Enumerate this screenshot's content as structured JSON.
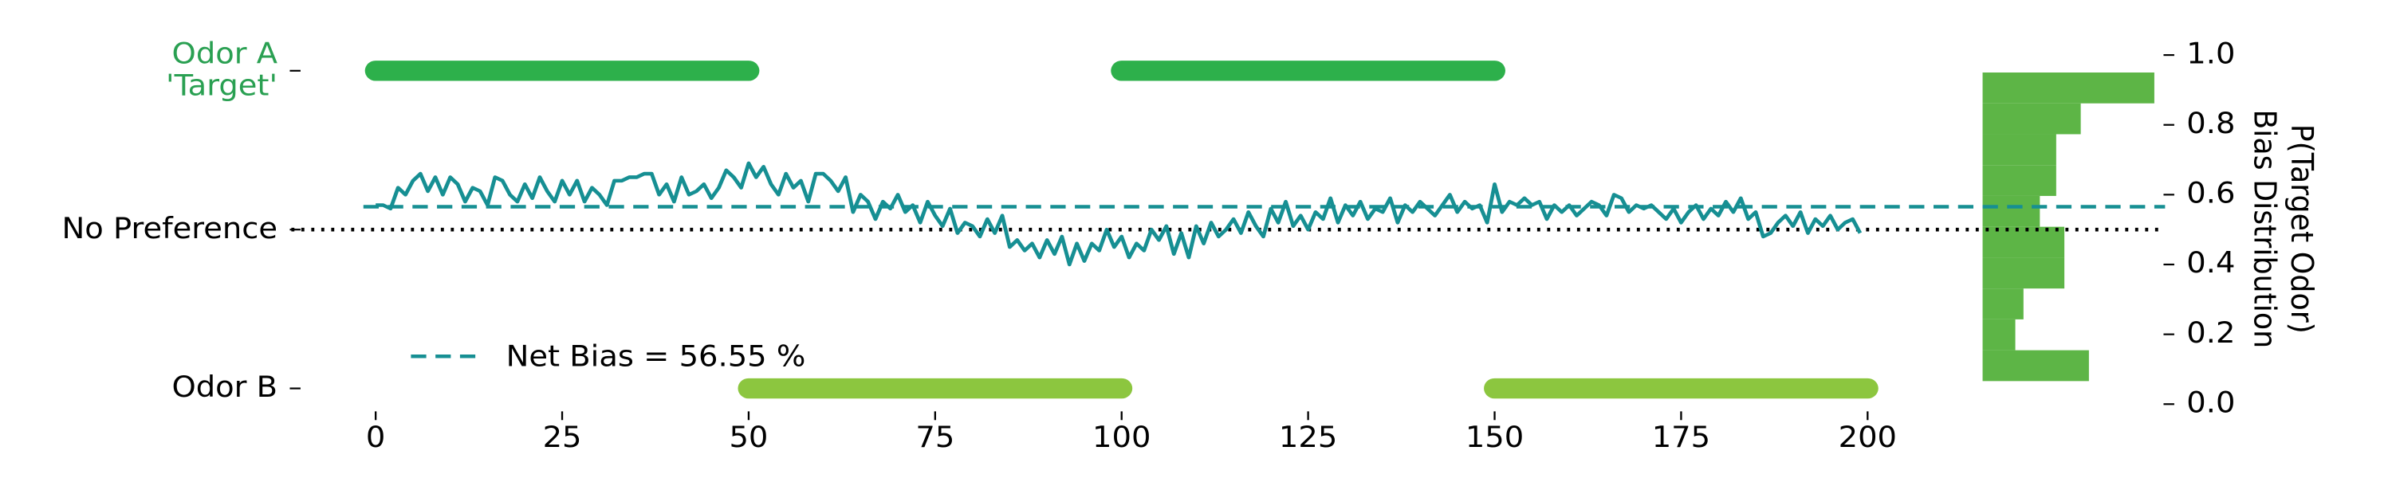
{
  "chart_data": {
    "type": "line",
    "x": [
      0,
      1,
      2,
      3,
      4,
      5,
      6,
      7,
      8,
      9,
      10,
      11,
      12,
      13,
      14,
      15,
      16,
      17,
      18,
      19,
      20,
      21,
      22,
      23,
      24,
      25,
      26,
      27,
      28,
      29,
      30,
      31,
      32,
      33,
      34,
      35,
      36,
      37,
      38,
      39,
      40,
      41,
      42,
      43,
      44,
      45,
      46,
      47,
      48,
      49,
      50,
      51,
      52,
      53,
      54,
      55,
      56,
      57,
      58,
      59,
      60,
      61,
      62,
      63,
      64,
      65,
      66,
      67,
      68,
      69,
      70,
      71,
      72,
      73,
      74,
      75,
      76,
      77,
      78,
      79,
      80,
      81,
      82,
      83,
      84,
      85,
      86,
      87,
      88,
      89,
      90,
      91,
      92,
      93,
      94,
      95,
      96,
      97,
      98,
      99,
      100,
      101,
      102,
      103,
      104,
      105,
      106,
      107,
      108,
      109,
      110,
      111,
      112,
      113,
      114,
      115,
      116,
      117,
      118,
      119,
      120,
      121,
      122,
      123,
      124,
      125,
      126,
      127,
      128,
      129,
      130,
      131,
      132,
      133,
      134,
      135,
      136,
      137,
      138,
      139,
      140,
      141,
      142,
      143,
      144,
      145,
      146,
      147,
      148,
      149,
      150,
      151,
      152,
      153,
      154,
      155,
      156,
      157,
      158,
      159,
      160,
      161,
      162,
      163,
      164,
      165,
      166,
      167,
      168,
      169,
      170,
      171,
      172,
      173,
      174,
      175,
      176,
      177,
      178,
      179,
      180,
      181,
      182,
      183,
      184,
      185,
      186,
      187,
      188,
      189,
      190,
      191,
      192,
      193,
      194,
      195,
      196,
      197,
      198,
      199
    ],
    "series": [
      {
        "color": "#168f93",
        "values": [
          0.57,
          0.57,
          0.56,
          0.62,
          0.6,
          0.64,
          0.66,
          0.61,
          0.65,
          0.6,
          0.65,
          0.63,
          0.58,
          0.62,
          0.61,
          0.57,
          0.65,
          0.64,
          0.6,
          0.58,
          0.63,
          0.59,
          0.65,
          0.61,
          0.58,
          0.64,
          0.6,
          0.64,
          0.58,
          0.62,
          0.6,
          0.57,
          0.64,
          0.64,
          0.65,
          0.65,
          0.66,
          0.66,
          0.6,
          0.63,
          0.58,
          0.65,
          0.6,
          0.61,
          0.63,
          0.59,
          0.62,
          0.67,
          0.65,
          0.62,
          0.69,
          0.65,
          0.68,
          0.63,
          0.6,
          0.66,
          0.62,
          0.64,
          0.58,
          0.66,
          0.66,
          0.64,
          0.61,
          0.65,
          0.55,
          0.6,
          0.58,
          0.53,
          0.58,
          0.56,
          0.6,
          0.55,
          0.57,
          0.52,
          0.58,
          0.54,
          0.51,
          0.56,
          0.49,
          0.52,
          0.51,
          0.48,
          0.53,
          0.49,
          0.54,
          0.45,
          0.47,
          0.44,
          0.46,
          0.42,
          0.47,
          0.43,
          0.48,
          0.4,
          0.46,
          0.41,
          0.46,
          0.44,
          0.5,
          0.45,
          0.48,
          0.42,
          0.46,
          0.44,
          0.5,
          0.47,
          0.51,
          0.43,
          0.49,
          0.42,
          0.51,
          0.46,
          0.52,
          0.48,
          0.5,
          0.53,
          0.49,
          0.55,
          0.51,
          0.48,
          0.56,
          0.52,
          0.58,
          0.51,
          0.54,
          0.5,
          0.55,
          0.53,
          0.59,
          0.52,
          0.57,
          0.54,
          0.58,
          0.53,
          0.56,
          0.55,
          0.59,
          0.52,
          0.57,
          0.55,
          0.58,
          0.56,
          0.54,
          0.57,
          0.6,
          0.55,
          0.58,
          0.56,
          0.57,
          0.52,
          0.63,
          0.55,
          0.58,
          0.57,
          0.59,
          0.57,
          0.58,
          0.53,
          0.57,
          0.55,
          0.57,
          0.54,
          0.56,
          0.58,
          0.57,
          0.54,
          0.6,
          0.59,
          0.55,
          0.57,
          0.56,
          0.57,
          0.55,
          0.53,
          0.56,
          0.52,
          0.55,
          0.57,
          0.53,
          0.56,
          0.54,
          0.58,
          0.55,
          0.59,
          0.53,
          0.55,
          0.48,
          0.49,
          0.52,
          0.54,
          0.51,
          0.55,
          0.49,
          0.53,
          0.51,
          0.54,
          0.5,
          0.52,
          0.53,
          0.49
        ]
      }
    ],
    "net_bias": {
      "value": 0.5655,
      "label": "Net Bias = 56.55 %",
      "color": "#168f93"
    },
    "no_preference": 0.5,
    "stimuli": [
      {
        "color": "#2db04b",
        "level": 0.955,
        "periods": [
          [
            0,
            50
          ],
          [
            100,
            150
          ]
        ]
      },
      {
        "color": "#8cc63f",
        "level": 0.045,
        "periods": [
          [
            50,
            100
          ],
          [
            150,
            200
          ]
        ]
      }
    ],
    "histogram": {
      "color": "#5db546",
      "bins": [
        0.066,
        0.1544,
        0.2428,
        0.3312,
        0.4196,
        0.508,
        0.5964,
        0.6848,
        0.7732,
        0.8616,
        0.95
      ],
      "counts": [
        26,
        8,
        10,
        20,
        20,
        14,
        18,
        18,
        24,
        42
      ],
      "xlim": [
        0,
        42
      ]
    },
    "xlim": [
      0,
      200
    ],
    "xticks": [
      0,
      25,
      50,
      75,
      100,
      125,
      150,
      175,
      200
    ],
    "ylim": [
      0,
      1
    ],
    "yticks": [
      {
        "value": 0.955,
        "label": [
          "Odor A",
          "'Target'"
        ],
        "color": "#2aa052"
      },
      {
        "value": 0.5,
        "label": [
          "No Preference"
        ],
        "color": "#000000"
      },
      {
        "value": 0.045,
        "label": [
          "Odor B"
        ],
        "color": "#000000"
      }
    ],
    "y2lim": [
      0,
      1
    ],
    "y2ticks": [
      {
        "value": 0,
        "label": "0.0"
      },
      {
        "value": 0.2,
        "label": "0.2"
      },
      {
        "value": 0.4,
        "label": "0.4"
      },
      {
        "value": 0.6,
        "label": "0.6"
      },
      {
        "value": 0.8,
        "label": "0.8"
      },
      {
        "value": 1,
        "label": "1.0"
      }
    ],
    "y2label": {
      "text": "P(Target Odor)",
      "color": "#168f93"
    },
    "y3label": {
      "text": "Bias Distribution",
      "color": "#5db546"
    }
  }
}
